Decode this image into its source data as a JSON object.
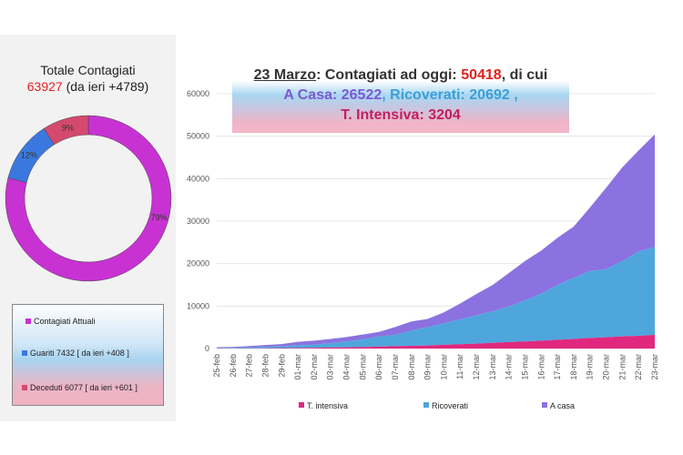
{
  "summary": {
    "title": "Totale Contagiati",
    "total": "63927",
    "delta": "(da ieri +4789)"
  },
  "banner": {
    "date": "23 Marzo",
    "line1_a": ": Contagiati ad oggi: ",
    "line1_value": "50418",
    "line1_b": ", di cui",
    "casa": "A Casa: 26522",
    "sep": ", ",
    "ricoverati": "Ricoverati: 20692 ,",
    "intensiva": "T. Intensiva: 3204"
  },
  "colors": {
    "contagiati": "#c832d2",
    "guariti": "#3a78e0",
    "deceduti": "#d44a6e",
    "intensiva": "#e0287f",
    "ricoverati": "#4ea6dc",
    "casa": "#8b72e0"
  },
  "chart_data": [
    {
      "type": "pie",
      "donut": true,
      "slices": [
        {
          "label": "Contagiati Attuali",
          "value": 79,
          "text": "79%"
        },
        {
          "label": "Guariti 7432 [ da ieri +408 ]",
          "value": 12,
          "text": "12%"
        },
        {
          "label": "Deceduti 6077 [ da ieri +601 ]",
          "value": 9,
          "text": "9%"
        }
      ]
    },
    {
      "type": "area",
      "stacked": true,
      "ylim": [
        0,
        60000
      ],
      "yticks": [
        "0",
        "10000",
        "20000",
        "30000",
        "40000",
        "50000",
        "60000"
      ],
      "grid": true,
      "legend": "bottom",
      "categories": [
        "25-feb",
        "26-feb",
        "27-feb",
        "28-feb",
        "29-feb",
        "01-mar",
        "02-mar",
        "03-mar",
        "04-mar",
        "05-mar",
        "06-mar",
        "07-mar",
        "08-mar",
        "09-mar",
        "10-mar",
        "11-mar",
        "12-mar",
        "13-mar",
        "14-mar",
        "15-mar",
        "16-mar",
        "17-mar",
        "18-mar",
        "19-mar",
        "20-mar",
        "21-mar",
        "22-mar",
        "23-mar"
      ],
      "series": [
        {
          "name": "T. intensiva",
          "values": [
            35,
            36,
            56,
            64,
            105,
            140,
            166,
            229,
            295,
            351,
            462,
            567,
            650,
            733,
            877,
            1028,
            1153,
            1328,
            1518,
            1672,
            1851,
            2060,
            2257,
            2498,
            2655,
            2857,
            3009,
            3204
          ]
        },
        {
          "name": "Ricoverati",
          "values": [
            114,
            128,
            248,
            345,
            401,
            639,
            742,
            1034,
            1346,
            1790,
            2394,
            2651,
            3557,
            4316,
            5038,
            5838,
            6650,
            7426,
            8372,
            9663,
            11025,
            12894,
            14363,
            15757,
            16020,
            17708,
            19846,
            20692
          ]
        },
        {
          "name": "A casa",
          "values": [
            162,
            221,
            284,
            412,
            543,
            798,
            927,
            1000,
            1065,
            1155,
            1060,
            1843,
            2180,
            1915,
            2599,
            3724,
            5036,
            6201,
            7860,
            9268,
            10197,
            11108,
            12090,
            14935,
            19185,
            22116,
            23783,
            26522
          ]
        }
      ]
    }
  ]
}
